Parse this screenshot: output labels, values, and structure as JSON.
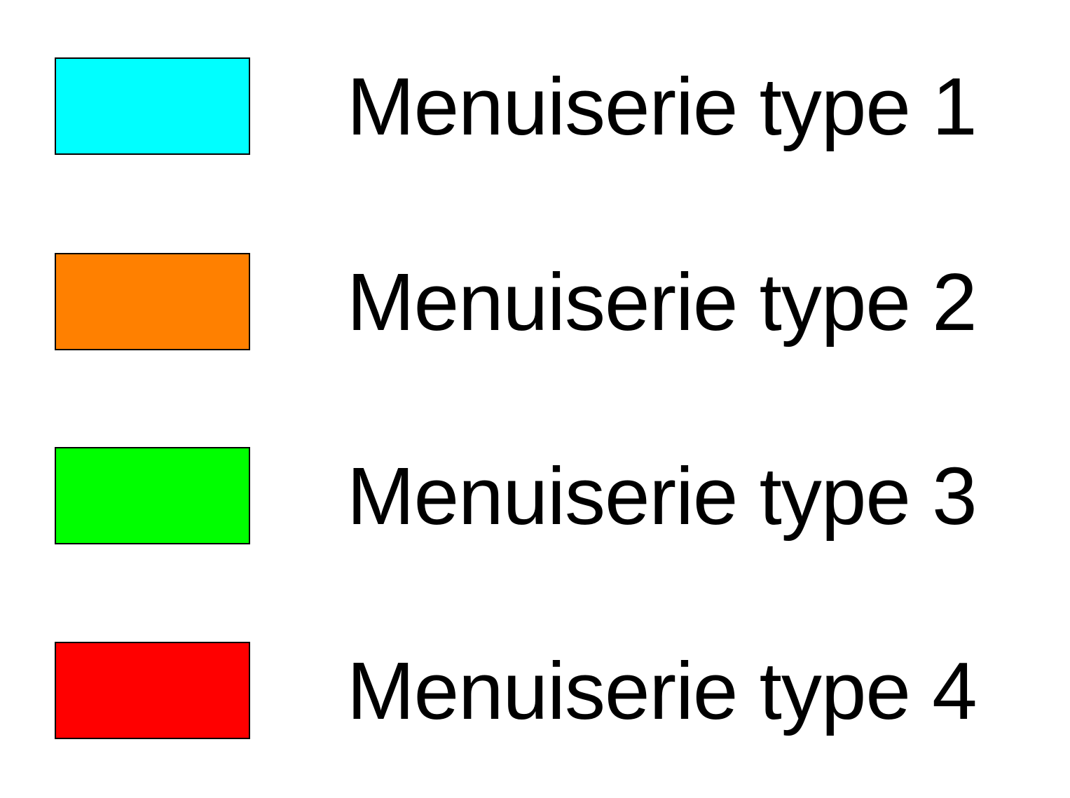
{
  "legend": {
    "background": "#FFFFFF",
    "text_color": "#000000",
    "swatch_border_color": "#000000",
    "items": [
      {
        "label": "Menuiserie type 1",
        "color": "#00FFFF",
        "color_name": "cyan"
      },
      {
        "label": "Menuiserie type 2",
        "color": "#FF8000",
        "color_name": "orange"
      },
      {
        "label": "Menuiserie type 3",
        "color": "#00FF00",
        "color_name": "green"
      },
      {
        "label": "Menuiserie type 4",
        "color": "#FF0000",
        "color_name": "red"
      }
    ]
  }
}
